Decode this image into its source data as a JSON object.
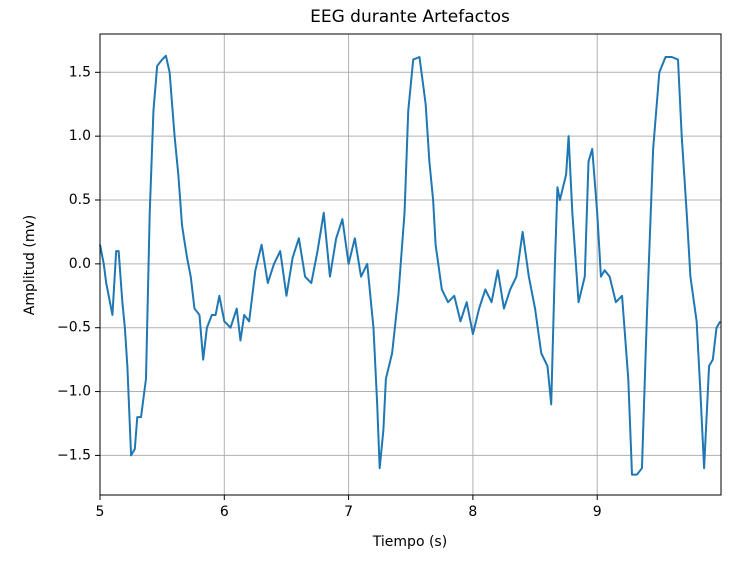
{
  "chart_data": {
    "type": "line",
    "title": "EEG durante Artefactos",
    "x_label": "Tiempo (s)",
    "y_label": "Amplitud (mv)",
    "color": "#1f77b4",
    "grid": true,
    "xlim": [
      5,
      9.996
    ],
    "ylim": [
      -1.81,
      1.8
    ],
    "xticks": [
      5,
      6,
      7,
      8,
      9
    ],
    "yticks": [
      {
        "value": -1.5,
        "label": "−1.5"
      },
      {
        "value": -1.0,
        "label": "−1.0"
      },
      {
        "value": -0.5,
        "label": "−0.5"
      },
      {
        "value": 0,
        "label": "0.0"
      },
      0.5,
      {
        "value": 1.0,
        "label": "1.0"
      },
      1.5
    ],
    "x": [
      5.0,
      5.03,
      5.05,
      5.08,
      5.1,
      5.13,
      5.15,
      5.18,
      5.2,
      5.22,
      5.25,
      5.28,
      5.3,
      5.33,
      5.37,
      5.4,
      5.43,
      5.46,
      5.5,
      5.53,
      5.56,
      5.6,
      5.63,
      5.66,
      5.7,
      5.73,
      5.76,
      5.8,
      5.83,
      5.86,
      5.9,
      5.93,
      5.96,
      6.0,
      6.05,
      6.1,
      6.13,
      6.16,
      6.2,
      6.25,
      6.3,
      6.35,
      6.4,
      6.45,
      6.5,
      6.55,
      6.6,
      6.65,
      6.7,
      6.75,
      6.8,
      6.85,
      6.9,
      6.95,
      7.0,
      7.05,
      7.1,
      7.15,
      7.2,
      7.23,
      7.25,
      7.28,
      7.3,
      7.35,
      7.4,
      7.45,
      7.48,
      7.52,
      7.57,
      7.6,
      7.62,
      7.65,
      7.68,
      7.7,
      7.75,
      7.8,
      7.85,
      7.9,
      7.95,
      8.0,
      8.05,
      8.1,
      8.15,
      8.2,
      8.25,
      8.3,
      8.35,
      8.4,
      8.45,
      8.5,
      8.55,
      8.6,
      8.63,
      8.66,
      8.68,
      8.7,
      8.75,
      8.77,
      8.8,
      8.85,
      8.9,
      8.93,
      8.96,
      9.0,
      9.03,
      9.06,
      9.1,
      9.15,
      9.2,
      9.25,
      9.28,
      9.32,
      9.36,
      9.4,
      9.45,
      9.5,
      9.55,
      9.6,
      9.65,
      9.68,
      9.72,
      9.75,
      9.8,
      9.83,
      9.86,
      9.9,
      9.93,
      9.96,
      9.99
    ],
    "values": [
      0.15,
      0.0,
      -0.15,
      -0.3,
      -0.4,
      0.1,
      0.1,
      -0.3,
      -0.5,
      -0.8,
      -1.5,
      -1.45,
      -1.2,
      -1.2,
      -0.9,
      0.4,
      1.2,
      1.55,
      1.6,
      1.63,
      1.5,
      1.0,
      0.7,
      0.3,
      0.05,
      -0.1,
      -0.35,
      -0.4,
      -0.75,
      -0.5,
      -0.4,
      -0.4,
      -0.25,
      -0.45,
      -0.5,
      -0.35,
      -0.6,
      -0.4,
      -0.45,
      -0.05,
      0.15,
      -0.15,
      0.0,
      0.1,
      -0.25,
      0.05,
      0.2,
      -0.1,
      -0.15,
      0.1,
      0.4,
      -0.1,
      0.2,
      0.35,
      0.0,
      0.2,
      -0.1,
      0.0,
      -0.5,
      -1.1,
      -1.6,
      -1.3,
      -0.9,
      -0.7,
      -0.25,
      0.4,
      1.2,
      1.6,
      1.62,
      1.4,
      1.25,
      0.8,
      0.5,
      0.15,
      -0.2,
      -0.3,
      -0.25,
      -0.45,
      -0.3,
      -0.55,
      -0.35,
      -0.2,
      -0.3,
      -0.05,
      -0.35,
      -0.2,
      -0.1,
      0.25,
      -0.1,
      -0.35,
      -0.7,
      -0.8,
      -1.1,
      0.0,
      0.6,
      0.5,
      0.7,
      1.0,
      0.4,
      -0.3,
      -0.1,
      0.8,
      0.9,
      0.4,
      -0.1,
      -0.05,
      -0.1,
      -0.3,
      -0.25,
      -0.9,
      -1.65,
      -1.65,
      -1.6,
      -0.4,
      0.9,
      1.5,
      1.62,
      1.62,
      1.6,
      1.0,
      0.4,
      -0.1,
      -0.45,
      -1.0,
      -1.6,
      -0.8,
      -0.75,
      -0.5,
      -0.45
    ]
  }
}
